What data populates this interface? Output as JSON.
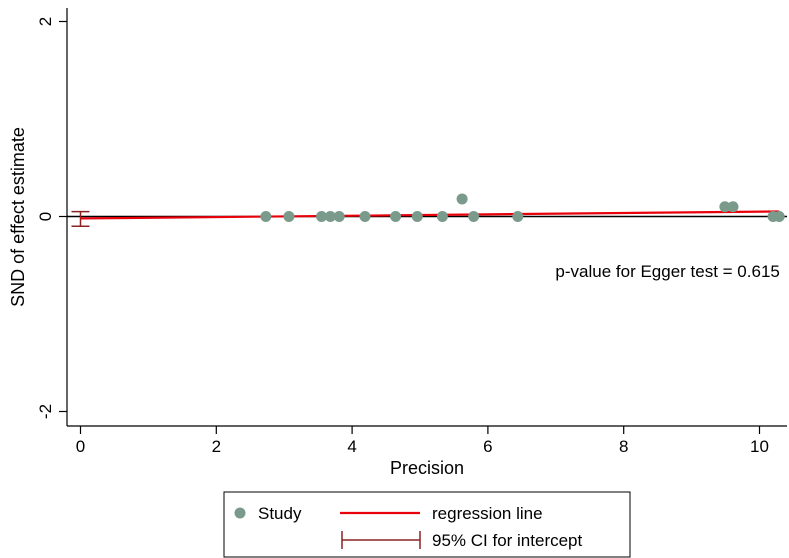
{
  "chart_data": {
    "type": "scatter",
    "xlabel": "Precision",
    "ylabel": "SND of effect estimate",
    "xlim": [
      -0.2,
      10.4
    ],
    "ylim": [
      -2.1,
      2.05
    ],
    "x_ticks": [
      0,
      2,
      4,
      6,
      8,
      10
    ],
    "y_ticks": [
      -2,
      0,
      2
    ],
    "grid": false,
    "reference_line_y": 0,
    "series": [
      {
        "name": "Study",
        "type": "scatter",
        "color": "#7a9a8c",
        "points": [
          {
            "x": 2.73,
            "y": 0.0
          },
          {
            "x": 3.07,
            "y": 0.0
          },
          {
            "x": 3.55,
            "y": 0.0
          },
          {
            "x": 3.68,
            "y": 0.0
          },
          {
            "x": 3.81,
            "y": 0.0
          },
          {
            "x": 4.19,
            "y": 0.0
          },
          {
            "x": 4.64,
            "y": 0.0
          },
          {
            "x": 4.96,
            "y": 0.0
          },
          {
            "x": 5.33,
            "y": 0.0
          },
          {
            "x": 5.62,
            "y": 0.18
          },
          {
            "x": 5.79,
            "y": 0.0
          },
          {
            "x": 6.44,
            "y": 0.0
          },
          {
            "x": 9.49,
            "y": 0.1
          },
          {
            "x": 9.61,
            "y": 0.1
          },
          {
            "x": 10.2,
            "y": 0.0
          },
          {
            "x": 10.29,
            "y": 0.0
          }
        ]
      },
      {
        "name": "regression line",
        "type": "line",
        "color": "#e8000b",
        "intercept": -0.02,
        "slope": 0.007,
        "x_range": [
          0,
          10.29
        ]
      },
      {
        "name": "95% CI for intercept",
        "type": "errorbar",
        "color": "#8b2323",
        "x": 0,
        "y_low": -0.1,
        "y_high": 0.05
      }
    ],
    "annotations": [
      {
        "text": "p-value for Egger test = 0.615",
        "x": 10.3,
        "y": -0.62
      }
    ],
    "legend": {
      "placement": "bottom",
      "entries": [
        {
          "label": "Study",
          "symbol": "marker"
        },
        {
          "label": "regression line",
          "symbol": "line"
        },
        {
          "label": "95% CI for intercept",
          "symbol": "errorbar"
        }
      ]
    }
  }
}
